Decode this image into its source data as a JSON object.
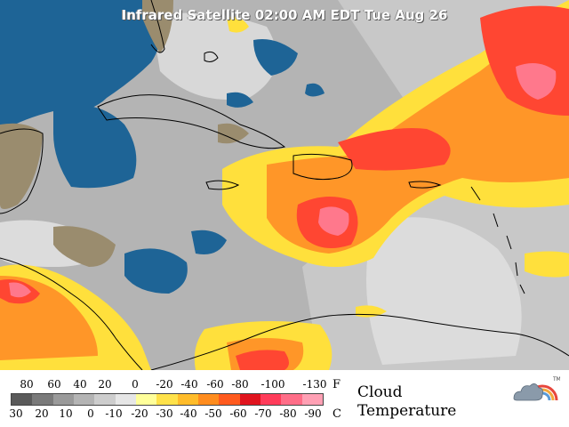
{
  "title": "Infrared Satellite 02:00 AM EDT Tue Aug 26",
  "legend": {
    "fahrenheit_unit": "F",
    "celsius_unit": "C",
    "fahrenheit_ticks": [
      "80",
      "60",
      "40",
      "20",
      "0",
      "-20",
      "-40",
      "-60",
      "-80",
      "-100",
      "-130"
    ],
    "celsius_ticks": [
      "30",
      "20",
      "10",
      "0",
      "-10",
      "-20",
      "-30",
      "-40",
      "-50",
      "-60",
      "-70",
      "-80",
      "-90"
    ],
    "label_line1": "Cloud",
    "label_line2": "Temperature",
    "colors": [
      "#5a5a5a",
      "#7a7a7a",
      "#9a9a9a",
      "#b4b4b4",
      "#cdcdcd",
      "#e6e6e6",
      "#ffff9a",
      "#ffe24a",
      "#ffbc2a",
      "#ff8c1e",
      "#ff5a1e",
      "#e0141e",
      "#ff3c5a",
      "#ff6e88",
      "#ffa0b4"
    ]
  },
  "map_colors": {
    "ocean": "#1e6496",
    "land": "#9a8c6e",
    "cloud_gray": "#b8b8b8",
    "cloud_light": "#e2e2e2",
    "cloud_yellow": "#ffe03c",
    "cloud_orange": "#ff9628",
    "cloud_red": "#ff4632",
    "cloud_pink": "#ff788c"
  },
  "logo": {
    "name": "weather-logo-icon",
    "mark": "TM"
  }
}
